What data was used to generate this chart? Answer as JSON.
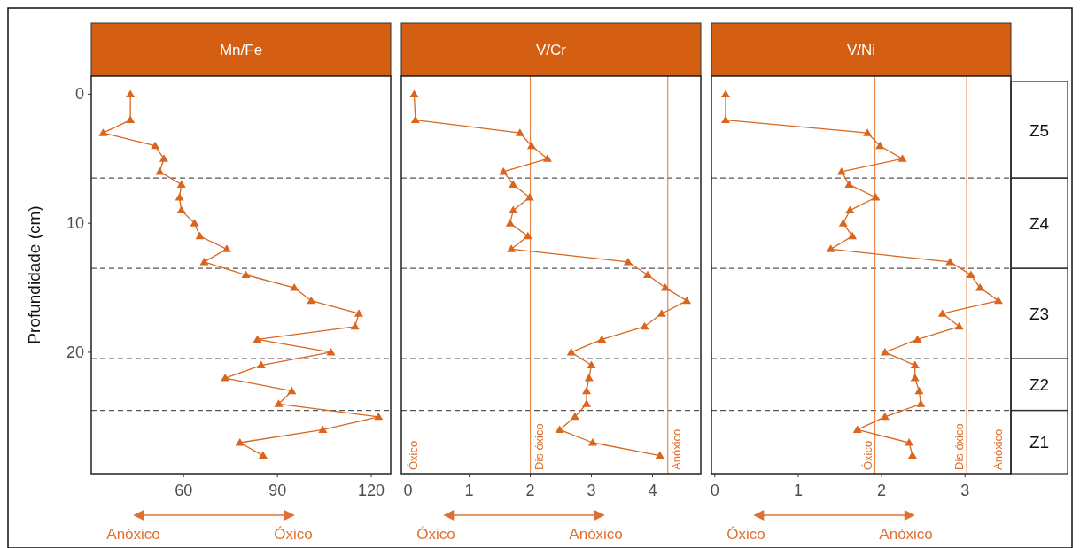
{
  "chart_data": [
    {
      "type": "line",
      "title": "Mn/Fe",
      "ylabel": "Profundidade (cm)",
      "marker": "triangle",
      "grid": false,
      "tick_labels": true,
      "xlim": [
        30.5,
        126.2
      ],
      "xticks": [
        60,
        90,
        120
      ],
      "ylim": [
        29.4,
        -1.4
      ],
      "yticks": [
        0,
        10,
        20
      ],
      "series": [
        {
          "color": "#d9661f",
          "x": [
            43,
            43,
            34.3,
            50.9,
            53.7,
            52.4,
            59.3,
            58.7,
            59.3,
            63.5,
            65.2,
            73.8,
            66.6,
            79.9,
            95.4,
            100.8,
            116,
            114.8,
            83.6,
            107.1,
            84.8,
            73.3,
            94.6,
            90.4,
            122.3,
            104.5,
            78,
            85.4
          ],
          "values": [
            0,
            2,
            3,
            4,
            5,
            6,
            7,
            8,
            9,
            10,
            11,
            12,
            13,
            14,
            15,
            16,
            17,
            18,
            19,
            20,
            21,
            22,
            23,
            24,
            25,
            26,
            27,
            28
          ]
        }
      ],
      "ref_lines": [
        {
          "axis": "y",
          "value": 6.5,
          "color": "#555555",
          "line_style": "dashed"
        },
        {
          "axis": "y",
          "value": 13.5,
          "color": "#555555",
          "line_style": "dashed"
        },
        {
          "axis": "y",
          "value": 20.5,
          "color": "#555555",
          "line_style": "dashed"
        },
        {
          "axis": "y",
          "value": 24.5,
          "color": "#555555",
          "line_style": "dashed"
        }
      ],
      "annotations": [
        "Anóxico",
        "Óxico"
      ]
    },
    {
      "type": "line",
      "title": "V/Cr",
      "marker": "triangle",
      "grid": false,
      "tick_labels": "x",
      "xlim": [
        -0.11,
        4.79
      ],
      "xticks": [
        0,
        1,
        2,
        3,
        4
      ],
      "ylim": [
        29.4,
        -1.4
      ],
      "series": [
        {
          "color": "#d9661f",
          "x": [
            0.1,
            0.12,
            1.83,
            2.02,
            2.28,
            1.56,
            1.72,
            1.99,
            1.72,
            1.67,
            1.96,
            1.69,
            3.6,
            3.92,
            4.21,
            4.56,
            4.15,
            3.87,
            3.17,
            2.67,
            3.0,
            2.96,
            2.92,
            2.92,
            2.73,
            2.48,
            3.02,
            4.12
          ],
          "values": [
            0,
            2,
            3,
            4,
            5,
            6,
            7,
            8,
            9,
            10,
            11,
            12,
            13,
            14,
            15,
            16,
            17,
            18,
            19,
            20,
            21,
            22,
            23,
            24,
            25,
            26,
            27,
            28
          ]
        }
      ],
      "ref_lines": [
        {
          "axis": "y",
          "value": 6.5,
          "color": "#555555",
          "line_style": "dashed"
        },
        {
          "axis": "y",
          "value": 13.5,
          "color": "#555555",
          "line_style": "dashed"
        },
        {
          "axis": "y",
          "value": 20.5,
          "color": "#555555",
          "line_style": "dashed"
        },
        {
          "axis": "y",
          "value": 24.5,
          "color": "#555555",
          "line_style": "dashed"
        },
        {
          "axis": "x",
          "value": 2,
          "label": "Dis óxico",
          "color": "#e8884a",
          "line_style": "solid"
        },
        {
          "axis": "x",
          "value": 4.25,
          "label": "Anóxico",
          "color": "#e8884a",
          "line_style": "solid"
        }
      ],
      "annotations": [
        "Óxico",
        "Anóxico",
        "Óxico"
      ]
    },
    {
      "type": "line",
      "title": "V/Ni",
      "marker": "triangle",
      "grid": false,
      "tick_labels": "x",
      "xlim": [
        -0.04,
        3.55
      ],
      "xticks": [
        0,
        1,
        2,
        3
      ],
      "ylim": [
        29.4,
        -1.4
      ],
      "series": [
        {
          "color": "#d9661f",
          "x": [
            0.13,
            0.13,
            1.83,
            1.98,
            2.25,
            1.52,
            1.61,
            1.93,
            1.62,
            1.54,
            1.65,
            1.39,
            2.82,
            3.07,
            3.18,
            3.4,
            2.73,
            2.93,
            2.43,
            2.04,
            2.4,
            2.4,
            2.45,
            2.47,
            2.04,
            1.71,
            2.33,
            2.37
          ],
          "values": [
            0,
            2,
            3,
            4,
            5,
            6,
            7,
            8,
            9,
            10,
            11,
            12,
            13,
            14,
            15,
            16,
            17,
            18,
            19,
            20,
            21,
            22,
            23,
            24,
            25,
            26,
            27,
            28
          ]
        }
      ],
      "ref_lines": [
        {
          "axis": "y",
          "value": 6.5,
          "color": "#555555",
          "line_style": "dashed"
        },
        {
          "axis": "y",
          "value": 13.5,
          "color": "#555555",
          "line_style": "dashed"
        },
        {
          "axis": "y",
          "value": 20.5,
          "color": "#555555",
          "line_style": "dashed"
        },
        {
          "axis": "y",
          "value": 24.5,
          "color": "#555555",
          "line_style": "dashed"
        },
        {
          "axis": "x",
          "value": 1.92,
          "label": "Óxico",
          "color": "#e8884a",
          "line_style": "solid"
        },
        {
          "axis": "x",
          "value": 3.02,
          "label": "Dis óxico",
          "color": "#e8884a",
          "line_style": "solid"
        }
      ],
      "annotations": [
        "Óxico",
        "Anóxico",
        "Anóxico",
        "Z5",
        "Z4",
        "Z3",
        "Z2",
        "Z1"
      ]
    }
  ]
}
